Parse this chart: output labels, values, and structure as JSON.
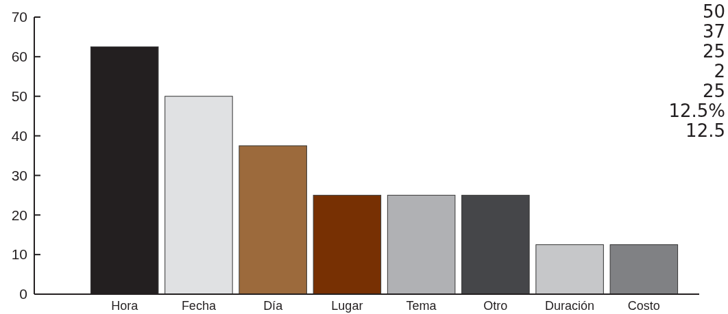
{
  "chart_data": {
    "type": "bar",
    "categories": [
      "Hora",
      "Fecha",
      "Día",
      "Lugar",
      "Tema",
      "Otro",
      "Duración",
      "Costo"
    ],
    "values": [
      62.5,
      50,
      37.5,
      25,
      25,
      25,
      12.5,
      12.5
    ],
    "colors": [
      "#231f20",
      "#e0e1e3",
      "#9c6a3c",
      "#773003",
      "#b0b1b4",
      "#454649",
      "#c6c7c9",
      "#808184"
    ],
    "ylim": [
      0,
      70
    ],
    "yticks": [
      0,
      10,
      20,
      30,
      40,
      50,
      60,
      70
    ],
    "annotations": [
      "50",
      "37",
      "25",
      "2",
      "25",
      "12.5%",
      "12.5"
    ]
  }
}
